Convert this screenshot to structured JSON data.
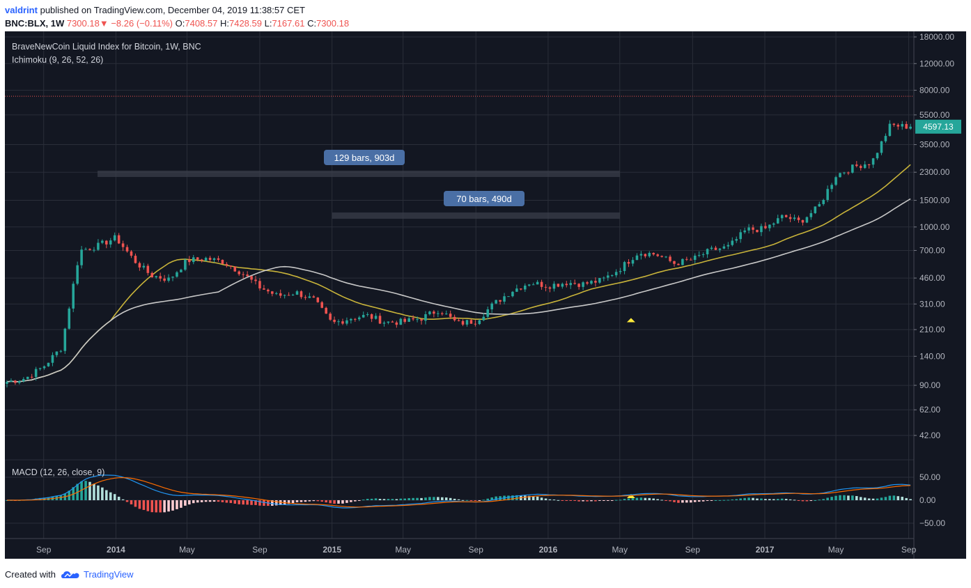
{
  "header": {
    "author": "valdrint",
    "published_text": "published on TradingView.com, December 04, 2019 11:38:57 CET",
    "symbol": "BNC:BLX, 1W",
    "price": "7300.18",
    "change": "−8.26 (−0.11%)",
    "o_label": "O:",
    "o_value": "7408.57",
    "h_label": "H:",
    "h_value": "7428.59",
    "l_label": "L:",
    "l_value": "7167.61",
    "c_label": "C:",
    "c_value": "7300.18"
  },
  "main_pane": {
    "title": "BraveNewCoin Liquid Index for Bitcoin, 1W, BNC",
    "indicator": "Ichimoku (9, 26, 52, 26)",
    "last_price_label": "4597.13",
    "range_1": "129 bars, 903d",
    "range_2": "70 bars, 490d"
  },
  "macd_pane": {
    "title": "MACD (12, 26, close, 9)"
  },
  "footer": {
    "created_with": "Created with",
    "brand": "TradingView"
  },
  "colors": {
    "background": "#131722",
    "up": "#26a69a",
    "down": "#ef5350",
    "lagging_line": "#c9b43a",
    "base_line": "#c8c8c8",
    "macd_line": "#2196f3",
    "signal_line": "#ff6d00",
    "marker": "#ffeb3b",
    "range_label": "#4a6fa5"
  },
  "chart_data": [
    {
      "type": "candlestick",
      "title": "BraveNewCoin Liquid Index for Bitcoin, 1W, BNC",
      "scale": "log",
      "y_ticks": [
        "18000.00",
        "12000.00",
        "8000.00",
        "5500.00",
        "3500.00",
        "2300.00",
        "1500.00",
        "1000.00",
        "700.00",
        "460.00",
        "310.00",
        "210.00",
        "140.00",
        "90.00",
        "62.00",
        "42.00"
      ],
      "x_ticks": [
        "Sep",
        "2014",
        "May",
        "Sep",
        "2015",
        "May",
        "Sep",
        "2016",
        "May",
        "Sep",
        "2017",
        "May",
        "Sep"
      ],
      "last_price": 4597.13,
      "reference_price_line": 7300.18,
      "close_series": [
        {
          "x": "2013-07",
          "y": 95
        },
        {
          "x": "2013-08",
          "y": 100
        },
        {
          "x": "2013-09",
          "y": 120
        },
        {
          "x": "2013-10",
          "y": 160
        },
        {
          "x": "2013-11",
          "y": 700
        },
        {
          "x": "2013-12",
          "y": 750
        },
        {
          "x": "2014-01",
          "y": 850
        },
        {
          "x": "2014-02",
          "y": 600
        },
        {
          "x": "2014-03",
          "y": 480
        },
        {
          "x": "2014-04",
          "y": 450
        },
        {
          "x": "2014-05",
          "y": 600
        },
        {
          "x": "2014-06",
          "y": 620
        },
        {
          "x": "2014-07",
          "y": 590
        },
        {
          "x": "2014-08",
          "y": 500
        },
        {
          "x": "2014-09",
          "y": 400
        },
        {
          "x": "2014-10",
          "y": 350
        },
        {
          "x": "2014-11",
          "y": 370
        },
        {
          "x": "2014-12",
          "y": 330
        },
        {
          "x": "2015-01",
          "y": 230
        },
        {
          "x": "2015-02",
          "y": 250
        },
        {
          "x": "2015-03",
          "y": 260
        },
        {
          "x": "2015-04",
          "y": 235
        },
        {
          "x": "2015-05",
          "y": 236
        },
        {
          "x": "2015-06",
          "y": 250
        },
        {
          "x": "2015-07",
          "y": 285
        },
        {
          "x": "2015-08",
          "y": 230
        },
        {
          "x": "2015-09",
          "y": 240
        },
        {
          "x": "2015-10",
          "y": 310
        },
        {
          "x": "2015-11",
          "y": 380
        },
        {
          "x": "2015-12",
          "y": 430
        },
        {
          "x": "2016-01",
          "y": 410
        },
        {
          "x": "2016-02",
          "y": 430
        },
        {
          "x": "2016-03",
          "y": 420
        },
        {
          "x": "2016-04",
          "y": 445
        },
        {
          "x": "2016-05",
          "y": 530
        },
        {
          "x": "2016-06",
          "y": 680
        },
        {
          "x": "2016-07",
          "y": 660
        },
        {
          "x": "2016-08",
          "y": 575
        },
        {
          "x": "2016-09",
          "y": 610
        },
        {
          "x": "2016-10",
          "y": 700
        },
        {
          "x": "2016-11",
          "y": 740
        },
        {
          "x": "2016-12",
          "y": 960
        },
        {
          "x": "2017-01",
          "y": 970
        },
        {
          "x": "2017-02",
          "y": 1180
        },
        {
          "x": "2017-03",
          "y": 1080
        },
        {
          "x": "2017-04",
          "y": 1350
        },
        {
          "x": "2017-05",
          "y": 2200
        },
        {
          "x": "2017-06",
          "y": 2500
        },
        {
          "x": "2017-07",
          "y": 2700
        },
        {
          "x": "2017-08",
          "y": 4700
        },
        {
          "x": "2017-09",
          "y": 4597.13
        }
      ],
      "annotations": [
        {
          "text": "129 bars, 903d",
          "from": "2013-12",
          "to": "2016-05"
        },
        {
          "text": "70 bars, 490d",
          "from": "2015-01",
          "to": "2016-05"
        }
      ]
    },
    {
      "type": "bar",
      "title": "MACD (12, 26, close, 9)",
      "y_ticks": [
        "50.00",
        "0.00",
        "−50.00"
      ],
      "x_ticks": [
        "Sep",
        "2014",
        "May",
        "Sep",
        "2015",
        "May",
        "Sep",
        "2016",
        "May",
        "Sep",
        "2017",
        "May",
        "Sep"
      ]
    }
  ]
}
